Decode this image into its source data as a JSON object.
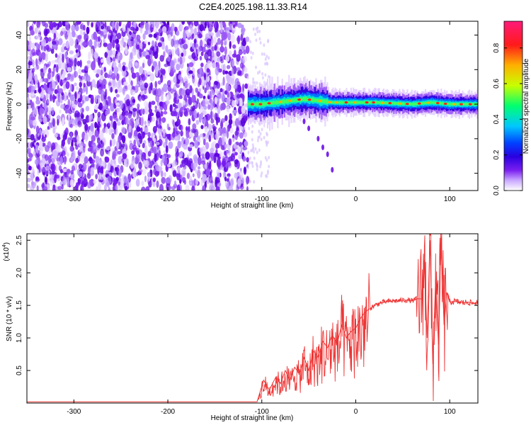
{
  "title": "C2E4.2025.198.11.33.R14",
  "colors": {
    "snr_line": "#ee3333",
    "colormap": [
      "#ffffff",
      "#d9b8ff",
      "#7a1ff0",
      "#2a00e0",
      "#0030ff",
      "#00c8ff",
      "#00ff70",
      "#c8ff00",
      "#ffb000",
      "#ff1a1a",
      "#ff1a7a"
    ]
  },
  "chart_data": [
    {
      "type": "heatmap",
      "title": "C2E4.2025.198.11.33.R14",
      "xlabel": "Height of straight line (km)",
      "ylabel": "Frequency (Hz)",
      "xlim": [
        -350,
        130
      ],
      "ylim": [
        -50,
        48
      ],
      "xticks": [
        -300,
        -200,
        -100,
        0,
        100
      ],
      "yticks": [
        -40,
        -20,
        0,
        20,
        40
      ],
      "colorbar": {
        "label": "Normalized spectral amplitude",
        "range": [
          0.0,
          0.95
        ],
        "ticks": [
          0.0,
          0.2,
          0.4,
          0.6,
          0.8
        ]
      },
      "features": {
        "noise_region_x": [
          -350,
          -115
        ],
        "signal_band_x": [
          -115,
          130
        ],
        "signal_center_freq": [
          [
            -115,
            0
          ],
          [
            -100,
            0
          ],
          [
            -85,
            1
          ],
          [
            -70,
            2
          ],
          [
            -55,
            3
          ],
          [
            -40,
            2
          ],
          [
            -25,
            1
          ],
          [
            -10,
            1
          ],
          [
            0,
            1
          ],
          [
            20,
            1
          ],
          [
            60,
            0
          ],
          [
            80,
            1
          ],
          [
            100,
            0
          ],
          [
            130,
            0
          ]
        ],
        "descending_track": [
          [
            -55,
            -10
          ],
          [
            -50,
            -14
          ],
          [
            -40,
            -20
          ],
          [
            -35,
            -25
          ],
          [
            -30,
            -29
          ],
          [
            -25,
            -38
          ]
        ]
      }
    },
    {
      "type": "line",
      "xlabel": "Height of straight line (km)",
      "ylabel": "SNR (10 * v/v)",
      "scale_label": "(x10^4)",
      "xlim": [
        -350,
        130
      ],
      "ylim": [
        0,
        2.6
      ],
      "xticks": [
        -300,
        -200,
        -100,
        0,
        100
      ],
      "yticks": [
        0.5,
        1.0,
        1.5,
        2.0,
        2.5
      ],
      "series": [
        {
          "x": [
            -350,
            -300,
            -250,
            -200,
            -150,
            -105,
            -98,
            -92,
            -85,
            -80,
            -75,
            -70,
            -65,
            -60,
            -55,
            -50,
            -45,
            -40,
            -35,
            -30,
            -25,
            -20,
            -15,
            -10,
            -5,
            0,
            5,
            10,
            15,
            20,
            25,
            30,
            35,
            40,
            45,
            50,
            55,
            60,
            65,
            70,
            73,
            76,
            79,
            82,
            85,
            88,
            91,
            94,
            97,
            100,
            105,
            110,
            115,
            120,
            125,
            130
          ],
          "y": [
            0.02,
            0.02,
            0.02,
            0.02,
            0.02,
            0.02,
            0.35,
            0.2,
            0.4,
            0.3,
            0.5,
            0.35,
            0.55,
            0.45,
            0.7,
            0.5,
            0.8,
            0.7,
            0.95,
            0.85,
            1.05,
            0.9,
            1.2,
            1.0,
            1.1,
            1.15,
            1.3,
            1.4,
            1.45,
            1.5,
            1.53,
            1.55,
            1.56,
            1.57,
            1.57,
            1.58,
            1.58,
            1.57,
            1.6,
            1.6,
            2.2,
            1.0,
            2.5,
            0.6,
            1.9,
            0.9,
            2.4,
            1.2,
            1.7,
            1.55,
            1.56,
            1.55,
            1.54,
            1.55,
            1.53,
            1.55
          ]
        }
      ]
    }
  ]
}
